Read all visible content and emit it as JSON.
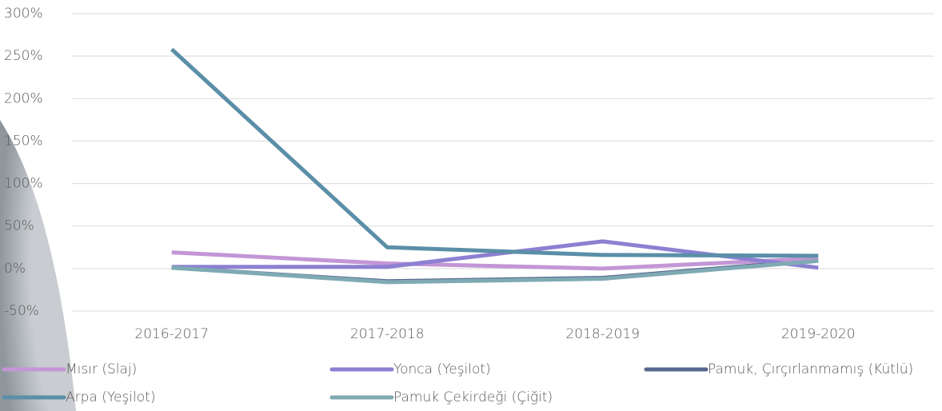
{
  "chart_data": {
    "type": "line",
    "categories": [
      "2016-2017",
      "2017-2018",
      "2018-2019",
      "2019-2020"
    ],
    "series": [
      {
        "name": "Mısır (Slaj)",
        "color": "#c396d6",
        "values": [
          19,
          6,
          0,
          12
        ]
      },
      {
        "name": "Yonca (Yeşilot)",
        "color": "#8c80d2",
        "values": [
          2,
          2,
          32,
          1
        ]
      },
      {
        "name": "Pamuk, Çırçırlanmamış (Kütlü)",
        "color": "#56688f",
        "values": [
          1,
          -15,
          -11,
          10
        ]
      },
      {
        "name": "Arpa (Yeşilot)",
        "color": "#5b8fa8",
        "values": [
          258,
          25,
          16,
          15
        ]
      },
      {
        "name": "Pamuk Çekirdeği (Çiğit)",
        "color": "#7faab3",
        "values": [
          1,
          -16,
          -12,
          9
        ]
      }
    ],
    "ylim": [
      -50,
      300
    ],
    "yticks": [
      {
        "value": -50,
        "label": "-50%"
      },
      {
        "value": 0,
        "label": "0%"
      },
      {
        "value": 50,
        "label": "50%"
      },
      {
        "value": 100,
        "label": "100%"
      },
      {
        "value": 150,
        "label": "150%"
      },
      {
        "value": 200,
        "label": "200%"
      },
      {
        "value": 250,
        "label": "250%"
      },
      {
        "value": 300,
        "label": "300%"
      }
    ],
    "grid": true
  }
}
